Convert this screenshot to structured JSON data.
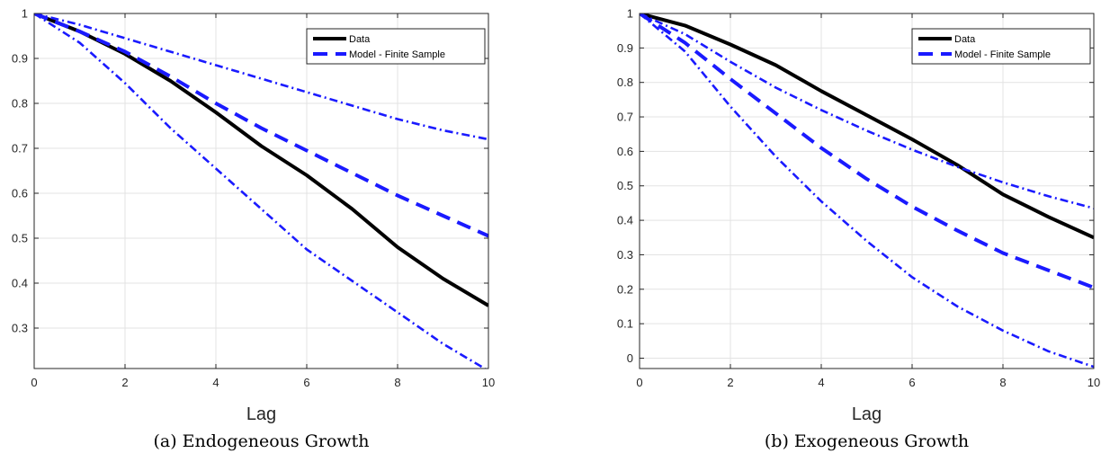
{
  "chart_data": [
    {
      "type": "line",
      "caption": "(a) Endogeneous Growth",
      "xlabel": "Lag",
      "ylabel": "",
      "xlim": [
        0,
        10
      ],
      "ylim": [
        0.21,
        1.0
      ],
      "xticks": [
        0,
        2,
        4,
        6,
        8,
        10
      ],
      "yticks": [
        0.3,
        0.4,
        0.5,
        0.6,
        0.7,
        0.8,
        0.9,
        1
      ],
      "grid": true,
      "legend_position": "top-right",
      "x": [
        0,
        1,
        2,
        3,
        4,
        5,
        6,
        7,
        8,
        9,
        10
      ],
      "series": [
        {
          "name": "Data",
          "style": "solid",
          "color": "#000000",
          "values": [
            1.0,
            0.96,
            0.91,
            0.85,
            0.78,
            0.705,
            0.64,
            0.565,
            0.48,
            0.41,
            0.35
          ]
        },
        {
          "name": "Model - Finite Sample",
          "style": "dashed",
          "color": "#1a1aff",
          "values": [
            1.0,
            0.96,
            0.915,
            0.86,
            0.8,
            0.745,
            0.695,
            0.645,
            0.595,
            0.55,
            0.505
          ]
        },
        {
          "name": "",
          "style": "dashdot",
          "color": "#1a1aff",
          "values": [
            1.0,
            0.975,
            0.945,
            0.915,
            0.885,
            0.855,
            0.825,
            0.795,
            0.765,
            0.74,
            0.72
          ]
        },
        {
          "name": "",
          "style": "dashdot",
          "color": "#1a1aff",
          "values": [
            1.0,
            0.935,
            0.845,
            0.745,
            0.655,
            0.565,
            0.475,
            0.405,
            0.335,
            0.265,
            0.205
          ]
        }
      ]
    },
    {
      "type": "line",
      "caption": "(b) Exogeneous Growth",
      "xlabel": "Lag",
      "ylabel": "",
      "xlim": [
        0,
        10
      ],
      "ylim": [
        -0.03,
        1.0
      ],
      "xticks": [
        0,
        2,
        4,
        6,
        8,
        10
      ],
      "yticks": [
        0,
        0.1,
        0.2,
        0.3,
        0.4,
        0.5,
        0.6,
        0.7,
        0.8,
        0.9,
        1
      ],
      "grid": true,
      "legend_position": "top-right",
      "x": [
        0,
        1,
        2,
        3,
        4,
        5,
        6,
        7,
        8,
        9,
        10
      ],
      "series": [
        {
          "name": "Data",
          "style": "solid",
          "color": "#000000",
          "values": [
            1.0,
            0.965,
            0.91,
            0.85,
            0.775,
            0.705,
            0.635,
            0.56,
            0.475,
            0.41,
            0.35
          ]
        },
        {
          "name": "Model - Finite Sample",
          "style": "dashed",
          "color": "#1a1aff",
          "values": [
            1.0,
            0.915,
            0.81,
            0.71,
            0.61,
            0.52,
            0.44,
            0.37,
            0.305,
            0.255,
            0.205
          ]
        },
        {
          "name": "",
          "style": "dashdot",
          "color": "#1a1aff",
          "values": [
            1.0,
            0.94,
            0.86,
            0.785,
            0.72,
            0.66,
            0.605,
            0.555,
            0.51,
            0.47,
            0.435
          ]
        },
        {
          "name": "",
          "style": "dashdot",
          "color": "#1a1aff",
          "values": [
            1.0,
            0.89,
            0.73,
            0.585,
            0.455,
            0.34,
            0.235,
            0.15,
            0.08,
            0.02,
            -0.025
          ]
        }
      ]
    }
  ]
}
